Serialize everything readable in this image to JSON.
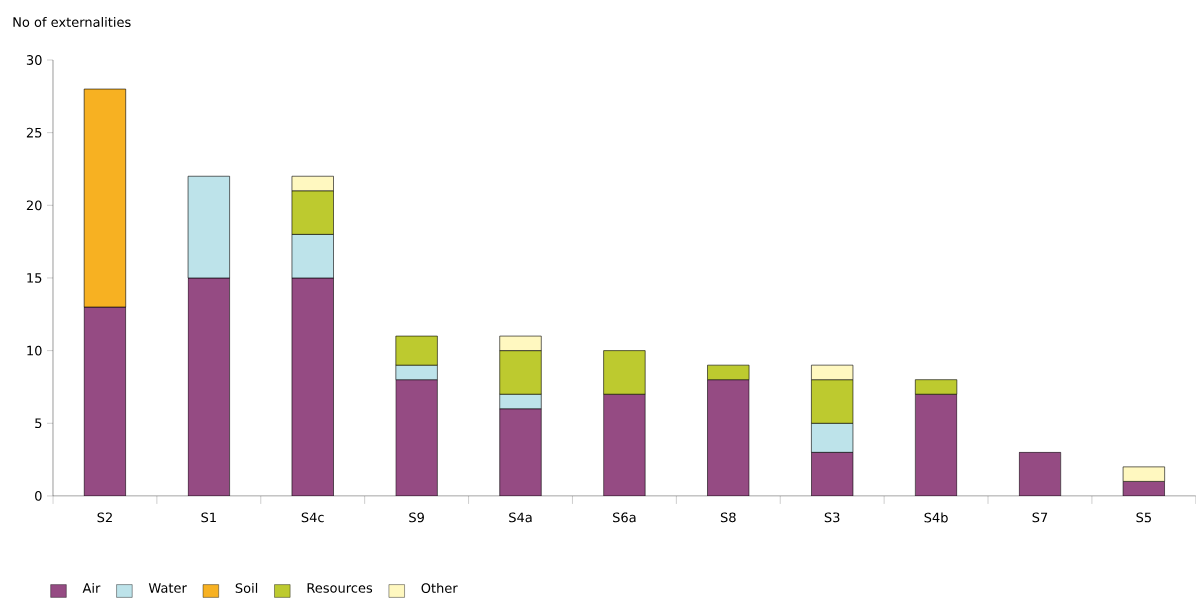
{
  "chart_data": {
    "type": "bar",
    "stacked": true,
    "ylabel": "No of externalities",
    "categories": [
      "S2",
      "S1",
      "S4c",
      "S9",
      "S4a",
      "S6a",
      "S8",
      "S3",
      "S4b",
      "S7",
      "S5"
    ],
    "series": [
      {
        "name": "Air",
        "color": "#954b83",
        "values": [
          13,
          15,
          15,
          8,
          6,
          7,
          8,
          3,
          7,
          3,
          1
        ]
      },
      {
        "name": "Water",
        "color": "#bde3ea",
        "values": [
          null,
          7,
          3,
          1,
          1,
          null,
          null,
          2,
          null,
          null,
          null
        ]
      },
      {
        "name": "Soil",
        "color": "#f7b122",
        "values": [
          15,
          null,
          null,
          null,
          null,
          null,
          null,
          null,
          null,
          null,
          null
        ]
      },
      {
        "name": "Resources",
        "color": "#bdca2f",
        "values": [
          null,
          null,
          3,
          2,
          3,
          3,
          1,
          3,
          1,
          null,
          null
        ]
      },
      {
        "name": "Other",
        "color": "#fff8c0",
        "values": [
          null,
          null,
          1,
          null,
          1,
          null,
          null,
          1,
          null,
          null,
          1
        ]
      }
    ],
    "ylim": [
      0,
      30
    ],
    "yticks": [
      0,
      5,
      10,
      15,
      20,
      25,
      30
    ],
    "grid": false,
    "legend": "bottom"
  }
}
